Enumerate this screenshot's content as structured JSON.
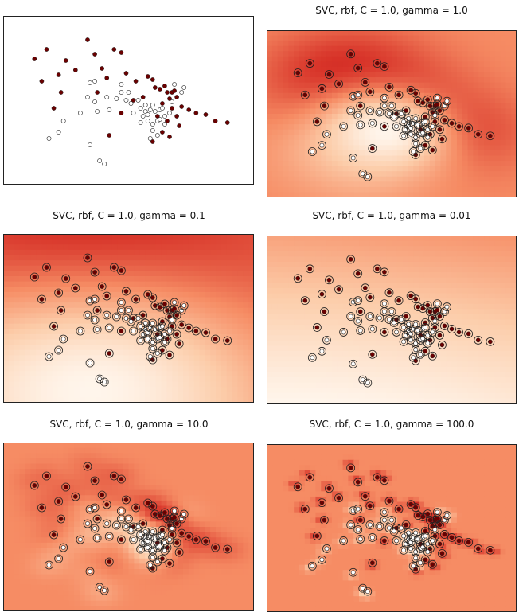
{
  "figure": {
    "background": "#ffffff"
  },
  "chart_data": [
    {
      "id": "data",
      "type": "scatter",
      "title": "",
      "variant": "data",
      "xlim": [
        0,
        1
      ],
      "ylim": [
        0,
        1
      ],
      "grid": false
    },
    {
      "id": "g1",
      "type": "heatmap",
      "title": "SVC, rbf, C = 1.0, gamma = 1.0",
      "variant": "svm",
      "gamma": 1.0,
      "grid": false
    },
    {
      "id": "g01",
      "type": "heatmap",
      "title": "SVC, rbf, C = 1.0, gamma = 0.1",
      "variant": "svm",
      "gamma": 0.1,
      "grid": false
    },
    {
      "id": "g001",
      "type": "heatmap",
      "title": "SVC, rbf, C = 1.0, gamma = 0.01",
      "variant": "svm",
      "gamma": 0.01,
      "grid": false
    },
    {
      "id": "g10",
      "type": "heatmap",
      "title": "SVC, rbf, C = 1.0, gamma = 10.0",
      "variant": "svm",
      "gamma": 10.0,
      "grid": false
    },
    {
      "id": "g100",
      "type": "heatmap",
      "title": "SVC, rbf, C = 1.0, gamma = 100.0",
      "variant": "svm",
      "gamma": 100.0,
      "grid": false
    }
  ],
  "points": {
    "class_dark_color": "#6b0000",
    "class_light_color": "#ffffff",
    "dark": [
      [
        0.11,
        0.76
      ],
      [
        0.16,
        0.82
      ],
      [
        0.21,
        0.66
      ],
      [
        0.22,
        0.55
      ],
      [
        0.24,
        0.75
      ],
      [
        0.28,
        0.69
      ],
      [
        0.33,
        0.88
      ],
      [
        0.36,
        0.79
      ],
      [
        0.39,
        0.7
      ],
      [
        0.41,
        0.64
      ],
      [
        0.44,
        0.82
      ],
      [
        0.47,
        0.8
      ],
      [
        0.49,
        0.67
      ],
      [
        0.53,
        0.62
      ],
      [
        0.56,
        0.52
      ],
      [
        0.58,
        0.65
      ],
      [
        0.6,
        0.63
      ],
      [
        0.61,
        0.58
      ],
      [
        0.63,
        0.57
      ],
      [
        0.64,
        0.48
      ],
      [
        0.65,
        0.59
      ],
      [
        0.66,
        0.55
      ],
      [
        0.67,
        0.51
      ],
      [
        0.68,
        0.55
      ],
      [
        0.69,
        0.56
      ],
      [
        0.7,
        0.52
      ],
      [
        0.72,
        0.46
      ],
      [
        0.75,
        0.44
      ],
      [
        0.78,
        0.42
      ],
      [
        0.82,
        0.41
      ],
      [
        0.86,
        0.37
      ],
      [
        0.91,
        0.36
      ],
      [
        0.42,
        0.28
      ],
      [
        0.64,
        0.3
      ],
      [
        0.67,
        0.27
      ],
      [
        0.71,
        0.34
      ],
      [
        0.19,
        0.45
      ],
      [
        0.47,
        0.42
      ],
      [
        0.6,
        0.24
      ],
      [
        0.52,
        0.5
      ],
      [
        0.66,
        0.37
      ],
      [
        0.68,
        0.45
      ],
      [
        0.14,
        0.62
      ],
      [
        0.37,
        0.55
      ],
      [
        0.62,
        0.4
      ],
      [
        0.7,
        0.4
      ]
    ],
    "light": [
      [
        0.17,
        0.26
      ],
      [
        0.21,
        0.3
      ],
      [
        0.23,
        0.37
      ],
      [
        0.3,
        0.42
      ],
      [
        0.33,
        0.52
      ],
      [
        0.34,
        0.61
      ],
      [
        0.36,
        0.62
      ],
      [
        0.36,
        0.49
      ],
      [
        0.37,
        0.43
      ],
      [
        0.38,
        0.12
      ],
      [
        0.4,
        0.1
      ],
      [
        0.41,
        0.52
      ],
      [
        0.42,
        0.44
      ],
      [
        0.45,
        0.51
      ],
      [
        0.47,
        0.55
      ],
      [
        0.49,
        0.5
      ],
      [
        0.5,
        0.55
      ],
      [
        0.51,
        0.48
      ],
      [
        0.52,
        0.42
      ],
      [
        0.54,
        0.5
      ],
      [
        0.55,
        0.36
      ],
      [
        0.56,
        0.4
      ],
      [
        0.57,
        0.43
      ],
      [
        0.57,
        0.47
      ],
      [
        0.58,
        0.41
      ],
      [
        0.58,
        0.37
      ],
      [
        0.59,
        0.44
      ],
      [
        0.6,
        0.35
      ],
      [
        0.6,
        0.31
      ],
      [
        0.61,
        0.43
      ],
      [
        0.62,
        0.37
      ],
      [
        0.63,
        0.44
      ],
      [
        0.63,
        0.38
      ],
      [
        0.64,
        0.45
      ],
      [
        0.65,
        0.4
      ],
      [
        0.67,
        0.42
      ],
      [
        0.68,
        0.49
      ],
      [
        0.69,
        0.6
      ],
      [
        0.72,
        0.55
      ],
      [
        0.73,
        0.58
      ],
      [
        0.59,
        0.26
      ],
      [
        0.62,
        0.28
      ],
      [
        0.34,
        0.22
      ],
      [
        0.47,
        0.6
      ],
      [
        0.55,
        0.45
      ],
      [
        0.6,
        0.47
      ],
      [
        0.65,
        0.35
      ]
    ]
  }
}
